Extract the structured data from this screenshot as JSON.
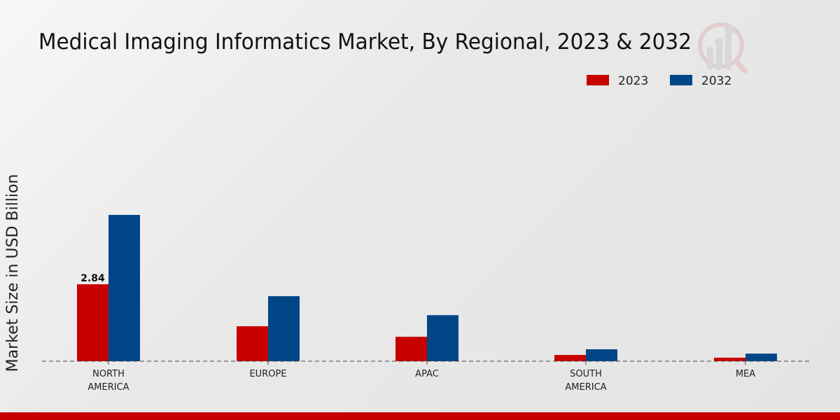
{
  "chart_data": {
    "type": "bar",
    "title": "Medical Imaging Informatics Market, By Regional, 2023 & 2032",
    "xlabel": "",
    "ylabel": "Market Size in USD Billion",
    "categories": [
      [
        "NORTH",
        "AMERICA"
      ],
      [
        "EUROPE"
      ],
      [
        "APAC"
      ],
      [
        "SOUTH",
        "AMERICA"
      ],
      [
        "MEA"
      ]
    ],
    "series": [
      {
        "name": "2023",
        "color": "#c80000",
        "values": [
          2.84,
          1.29,
          0.9,
          0.23,
          0.13
        ]
      },
      {
        "name": "2032",
        "color": "#004687",
        "values": [
          5.4,
          2.4,
          1.7,
          0.44,
          0.28
        ]
      }
    ],
    "data_labels": [
      {
        "series": 0,
        "index": 0,
        "text": "2.84"
      }
    ],
    "ylim": [
      0,
      6.3
    ],
    "grid": false,
    "legend": "top-right"
  }
}
